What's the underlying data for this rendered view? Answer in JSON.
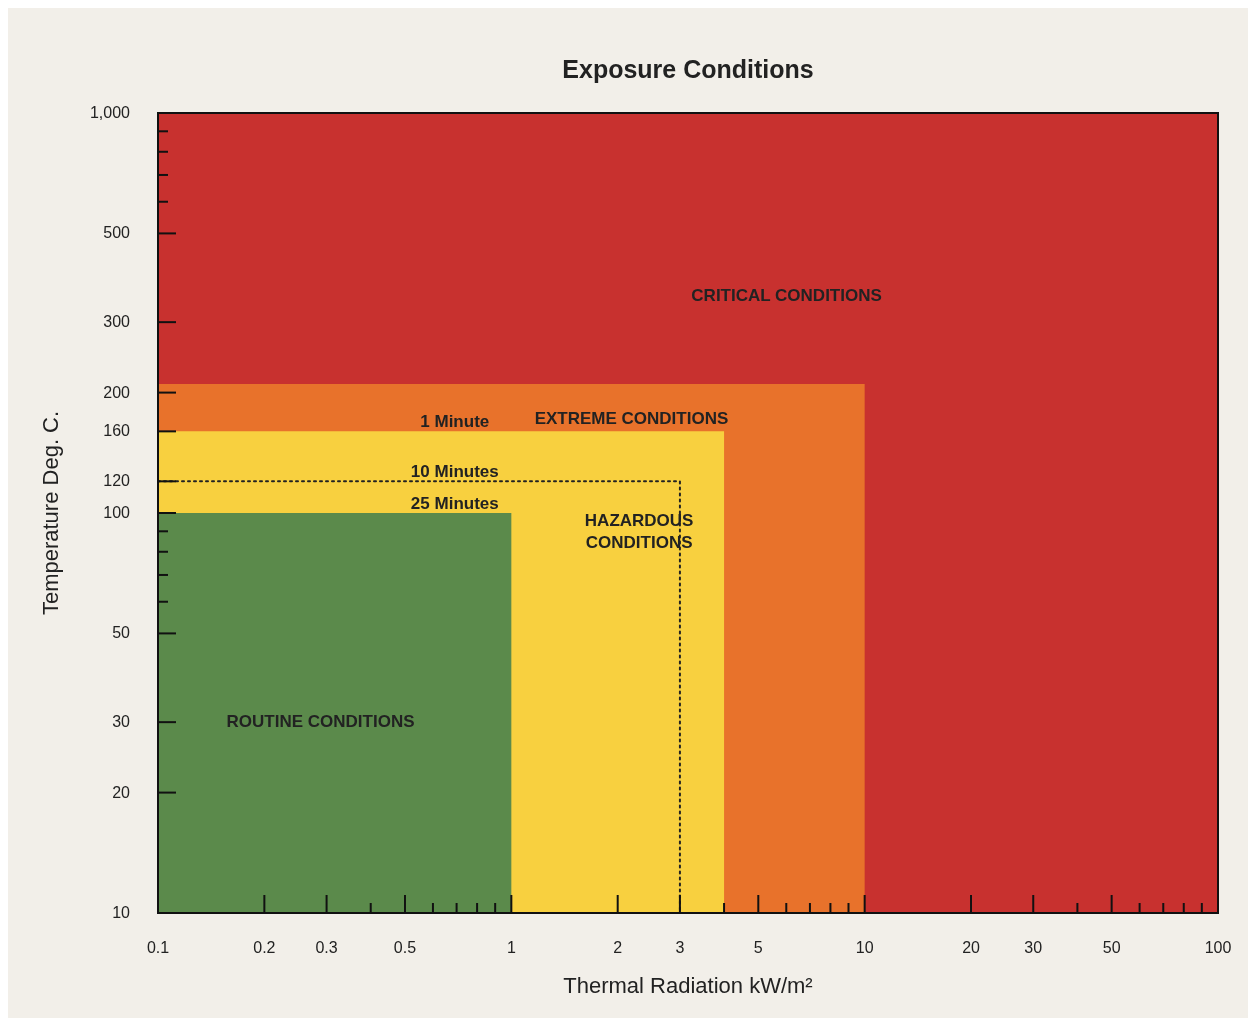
{
  "chart_data": {
    "type": "area",
    "title": "Exposure Conditions",
    "xlabel": "Thermal Radiation kW/m²",
    "ylabel": "Temperature Deg. C.",
    "log": "xy",
    "grid": false,
    "legend": false,
    "xlim": [
      0.1,
      100
    ],
    "ylim": [
      10,
      1000
    ],
    "xticks": [
      0.1,
      0.2,
      0.3,
      {
        "value": 0.4,
        "label": null
      },
      0.5,
      {
        "value": 0.6,
        "label": null
      },
      {
        "value": 0.7,
        "label": null
      },
      {
        "value": 0.8,
        "label": null
      },
      {
        "value": 0.9,
        "label": null
      },
      1,
      2,
      3,
      {
        "value": 4,
        "label": null
      },
      5,
      {
        "value": 6,
        "label": null
      },
      {
        "value": 7,
        "label": null
      },
      {
        "value": 8,
        "label": null
      },
      {
        "value": 9,
        "label": null
      },
      10,
      20,
      30,
      {
        "value": 40,
        "label": null
      },
      50,
      {
        "value": 60,
        "label": null
      },
      {
        "value": 70,
        "label": null
      },
      {
        "value": 80,
        "label": null
      },
      {
        "value": 90,
        "label": null
      },
      100
    ],
    "yticks": [
      10,
      20,
      30,
      50,
      {
        "value": 60,
        "label": null
      },
      {
        "value": 70,
        "label": null
      },
      {
        "value": 80,
        "label": null
      },
      {
        "value": 90,
        "label": null
      },
      100,
      120,
      160,
      200,
      300,
      500,
      {
        "value": 600,
        "label": null
      },
      {
        "value": 700,
        "label": null
      },
      {
        "value": 800,
        "label": null
      },
      {
        "value": 900,
        "label": null
      },
      {
        "value": 1000,
        "label": "1,000"
      }
    ],
    "series": [
      {
        "name": "EXTREME CONDITIONS",
        "color": "#e8722b",
        "x": [
          0.1,
          10
        ],
        "values": [
          210,
          210
        ]
      },
      {
        "name": "HAZARDOUS\nCONDITIONS",
        "color": "#f8d03f",
        "x": [
          0.1,
          4
        ],
        "values": [
          160,
          160
        ]
      },
      {
        "name": "ROUTINE CONDITIONS",
        "color": "#5b8a4b",
        "x": [
          0.1,
          1
        ],
        "values": [
          100,
          100
        ]
      },
      {
        "type": "line",
        "color": "#222222",
        "line_style": "dotted",
        "x": [
          0.1,
          3,
          3
        ],
        "values": [
          120,
          120,
          10
        ]
      }
    ],
    "annotations": [
      "CRITICAL CONDITIONS",
      {
        "text": "1 Minute",
        "y": 160
      },
      {
        "text": "10 Minutes",
        "y": 120
      },
      {
        "text": "25 Minutes",
        "y": 100
      }
    ]
  }
}
